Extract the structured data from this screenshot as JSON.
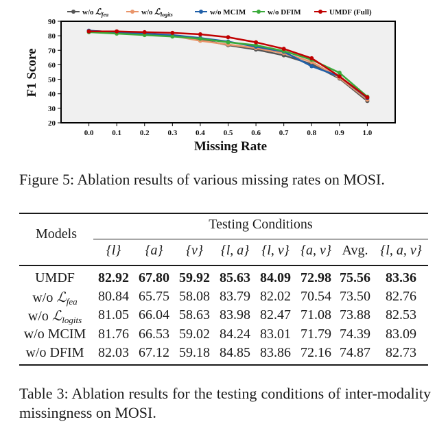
{
  "figure_caption": "Figure 5: Ablation results of various missing rates on MOSI.",
  "table_caption": "Table 3: Ablation results for the testing conditions of inter-modality missingness on MOSI.",
  "chart_data": {
    "type": "line",
    "xlabel": "Missing Rate",
    "ylabel": "F1 Score",
    "x": [
      0.0,
      0.1,
      0.2,
      0.3,
      0.4,
      0.5,
      0.6,
      0.7,
      0.8,
      0.9,
      1.0
    ],
    "x_ticks": [
      "0.0",
      "0.1",
      "0.2",
      "0.3",
      "0.4",
      "0.5",
      "0.6",
      "0.7",
      "0.8",
      "0.9",
      "1.0"
    ],
    "y_ticks": [
      "20",
      "30",
      "40",
      "50",
      "60",
      "70",
      "80",
      "90"
    ],
    "ylim": [
      20,
      90
    ],
    "xlim": [
      -0.1,
      1.1
    ],
    "grid": false,
    "legend_position": "top",
    "series": [
      {
        "name": "w/o L_fea",
        "legend_main": "w/o ",
        "legend_sub": "fea",
        "color": "#555555",
        "values": [
          83.5,
          82.5,
          81.5,
          80.0,
          77.5,
          73.5,
          70.5,
          66.5,
          60.5,
          50.5,
          35.0
        ]
      },
      {
        "name": "w/o L_logits",
        "legend_main": "w/o ",
        "legend_sub": "logits",
        "color": "#e9956a",
        "values": [
          83.0,
          82.0,
          81.0,
          80.0,
          76.5,
          74.0,
          71.5,
          68.0,
          62.0,
          51.0,
          36.0
        ]
      },
      {
        "name": "w/o MCIM",
        "legend_main": "w/o MCIM",
        "legend_sub": "",
        "color": "#1f5fa8",
        "values": [
          83.5,
          82.5,
          81.5,
          80.5,
          78.5,
          76.0,
          72.5,
          69.0,
          59.0,
          52.0,
          37.0
        ]
      },
      {
        "name": "w/o DFIM",
        "legend_main": "w/o DFIM",
        "legend_sub": "",
        "color": "#3aaa3a",
        "values": [
          82.5,
          81.5,
          80.5,
          79.5,
          78.0,
          75.5,
          73.5,
          69.5,
          63.5,
          54.5,
          38.0
        ]
      },
      {
        "name": "UMDF (Full)",
        "legend_main": "UMDF (Full)",
        "legend_sub": "",
        "color": "#c00000",
        "values": [
          83.0,
          83.0,
          82.5,
          82.0,
          81.0,
          79.0,
          75.5,
          71.0,
          64.5,
          52.0,
          37.5
        ]
      }
    ]
  },
  "table": {
    "models_header": "Models",
    "group_header": "Testing Conditions",
    "columns": [
      "{l}",
      "{a}",
      "{v}",
      "{l, a}",
      "{l, v}",
      "{a, v}",
      "Avg.",
      "{l, a, v}"
    ],
    "rows": [
      {
        "model_main": "UMDF",
        "model_sub": "",
        "values": [
          "82.92",
          "67.80",
          "59.92",
          "85.63",
          "84.09",
          "72.98",
          "75.56",
          "83.36"
        ]
      },
      {
        "model_main": "w/o ",
        "model_sub": "fea",
        "values": [
          "80.84",
          "65.75",
          "58.08",
          "83.79",
          "82.02",
          "70.54",
          "73.50",
          "82.76"
        ]
      },
      {
        "model_main": "w/o ",
        "model_sub": "logits",
        "values": [
          "81.05",
          "66.04",
          "58.63",
          "83.98",
          "82.47",
          "71.08",
          "73.88",
          "82.53"
        ]
      },
      {
        "model_main": "w/o MCIM",
        "model_sub": "",
        "values": [
          "81.76",
          "66.53",
          "59.02",
          "84.24",
          "83.01",
          "71.79",
          "74.39",
          "83.09"
        ]
      },
      {
        "model_main": "w/o DFIM",
        "model_sub": "",
        "values": [
          "82.03",
          "67.12",
          "59.18",
          "84.85",
          "83.86",
          "72.16",
          "74.87",
          "82.73"
        ]
      }
    ]
  }
}
